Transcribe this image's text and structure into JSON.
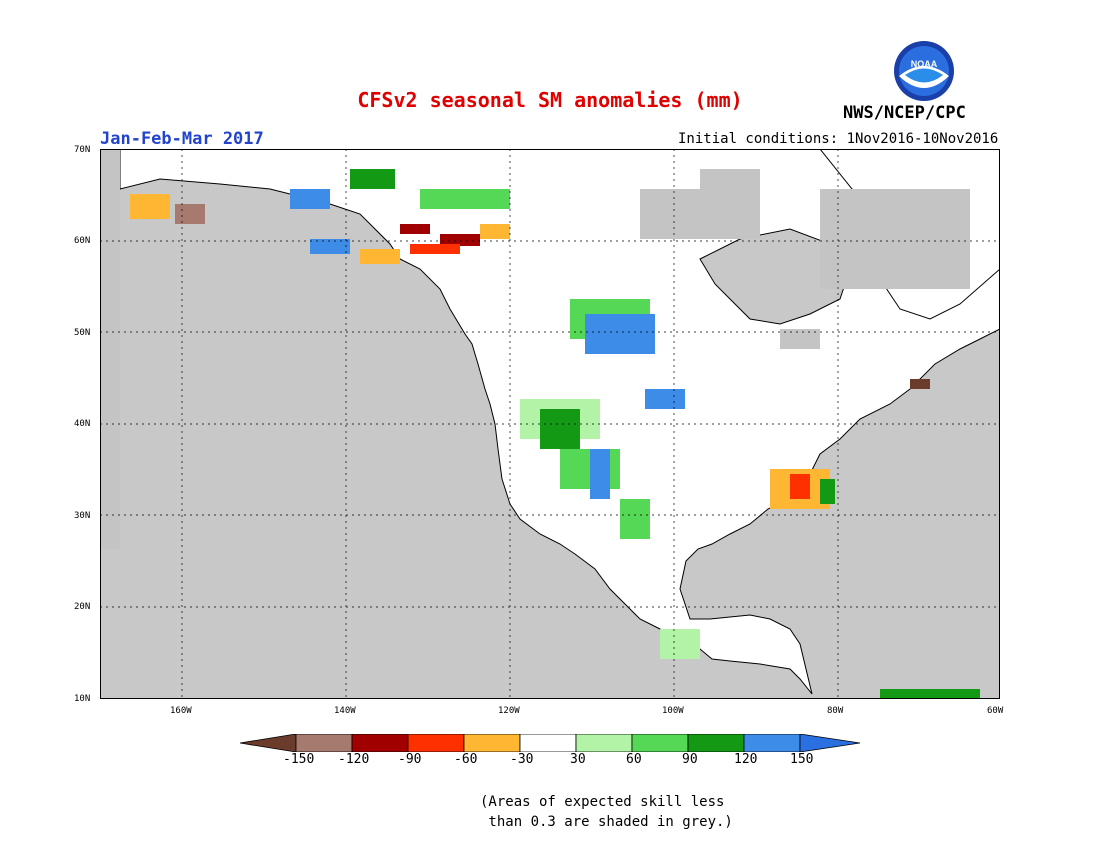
{
  "map": {
    "title": "CFSv2 seasonal SM anomalies (mm)",
    "period": "Jan-Feb-Mar 2017",
    "initial_conditions": "Initial conditions: 1Nov2016-10Nov2016",
    "agency": "NWS/NCEP/CPC",
    "logo_text": "NOAA",
    "lat_labels": [
      "70N",
      "60N",
      "50N",
      "40N",
      "30N",
      "20N",
      "10N"
    ],
    "lon_labels": [
      "160W",
      "140W",
      "120W",
      "100W",
      "80W",
      "60W"
    ],
    "note": "(Areas of expected skill less\n than 0.3 are shaded in grey.)",
    "colors": {
      "title": "#e00000",
      "period": "#2244cc",
      "ocean": "#c8c8c8",
      "land": "#ffffff",
      "low_skill_grey": "#c4c4c4"
    }
  },
  "legend": {
    "tick_labels": [
      "-150",
      "-120",
      "-90",
      "-60",
      "-30",
      "30",
      "60",
      "90",
      "120",
      "150"
    ],
    "colors": [
      "#6b3c2c",
      "#a67a6e",
      "#a00000",
      "#ff3000",
      "#ffb733",
      "#ffffff",
      "#b2f3a7",
      "#55d855",
      "#139913",
      "#3c8ce8",
      "#2a70e0"
    ]
  }
}
